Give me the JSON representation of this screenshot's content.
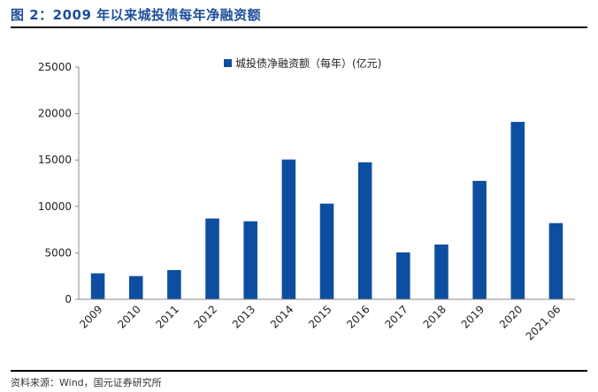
{
  "header": {
    "title": "图 2：2009 年以来城投债每年净融资额"
  },
  "footer": {
    "source": "资料来源：Wind，国元证券研究所"
  },
  "chart_data": {
    "type": "bar",
    "categories": [
      "2009",
      "2010",
      "2011",
      "2012",
      "2013",
      "2014",
      "2015",
      "2016",
      "2017",
      "2018",
      "2019",
      "2020",
      "2021.06"
    ],
    "series": [
      {
        "name": "城投债净融资额（每年）(亿元)",
        "values": [
          2800,
          2500,
          3150,
          8700,
          8400,
          15050,
          10300,
          14750,
          5050,
          5900,
          12750,
          19100,
          8200
        ],
        "color": "#0d4ea0"
      }
    ],
    "yticks": [
      "0",
      "5000",
      "10000",
      "15000",
      "20000",
      "25000"
    ],
    "ylim": [
      0,
      25000
    ],
    "grid": false,
    "legend_position": "top-center"
  }
}
